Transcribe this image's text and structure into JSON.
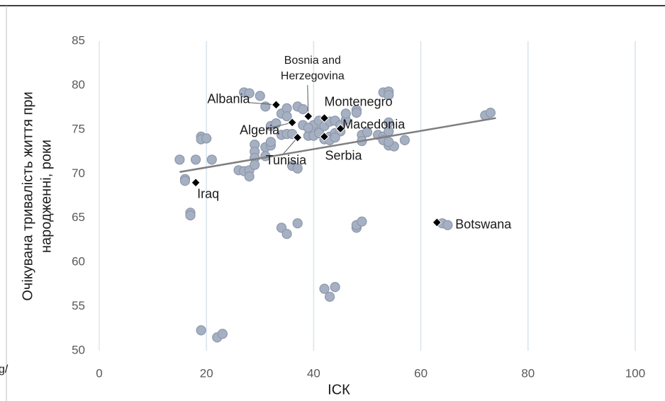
{
  "chart_data": {
    "type": "scatter",
    "x_label": "ІСК",
    "y_label": [
      "Очікувана тривалість життя при",
      "народженні, роки"
    ],
    "fragment": "g/",
    "xlim": [
      0,
      100
    ],
    "xticks": [
      0,
      20,
      40,
      60,
      80,
      100
    ],
    "ylim": [
      50,
      85
    ],
    "yticks": [
      50,
      55,
      60,
      65,
      70,
      75,
      80,
      85
    ],
    "grid": "vertical",
    "points": {
      "color": "#a6b0c3",
      "x": [
        15,
        16,
        16,
        18,
        19,
        19,
        20,
        21,
        17,
        17,
        19,
        22,
        23,
        27,
        28,
        30,
        31,
        26,
        27,
        28,
        28,
        29,
        29,
        29,
        29,
        31,
        32,
        32,
        32,
        33,
        31,
        34,
        35,
        37,
        36,
        37,
        34,
        35,
        34,
        35,
        35,
        36,
        37,
        38,
        38,
        39,
        40,
        40,
        41,
        41,
        42,
        43,
        43,
        44,
        44,
        45,
        45,
        46,
        39,
        41,
        42,
        43,
        44,
        42,
        44,
        43,
        48,
        48,
        49,
        48,
        48,
        46,
        53,
        54,
        54,
        49,
        50,
        49,
        52,
        53,
        54,
        54,
        54,
        55,
        57,
        53,
        54,
        72,
        73,
        64,
        65
      ],
      "y": [
        71.6,
        69.4,
        69.2,
        71.6,
        74.2,
        73.9,
        74,
        71.6,
        65.6,
        65.3,
        52.3,
        51.5,
        51.9,
        79.2,
        79.1,
        78.8,
        77.6,
        70.4,
        70.3,
        70.4,
        69.7,
        73.3,
        72.5,
        71.8,
        71,
        73,
        73.2,
        73.6,
        75.4,
        75.7,
        72,
        63.9,
        63.2,
        64.4,
        70.9,
        70.6,
        74.4,
        74.5,
        76.8,
        77.4,
        76.5,
        74.5,
        77.6,
        77.3,
        75.5,
        74.3,
        75.5,
        74.3,
        76,
        74.8,
        75.4,
        75.9,
        74.2,
        76,
        74.6,
        74.8,
        75.5,
        76.1,
        75.2,
        74.6,
        73.9,
        73.8,
        74.1,
        57,
        57.2,
        56.1,
        63.9,
        64.2,
        64.6,
        77.2,
        76.9,
        76.8,
        79.2,
        79.3,
        78.9,
        74.4,
        74.7,
        73.7,
        74.4,
        74.2,
        74.8,
        75.8,
        73.2,
        73.1,
        73.8,
        73.8,
        73.6,
        76.6,
        76.9,
        64.4,
        64.2
      ]
    },
    "highlighted": {
      "color": "#000000",
      "labels": [
        "Albania",
        "Algeria",
        "Bosnia and Herzegovina",
        "Montenegro",
        "Macedonia",
        "Serbia",
        "Tunisia",
        "Iraq",
        "Botswana"
      ],
      "x": [
        33,
        36,
        39,
        42,
        45,
        42,
        37,
        18,
        63
      ],
      "y": [
        77.8,
        75.8,
        76.5,
        76.3,
        75.1,
        74.2,
        74.1,
        69,
        64.5
      ]
    },
    "trendline": {
      "color": "#7f7f7f",
      "x": [
        15,
        74
      ],
      "y": [
        70.2,
        76.3
      ]
    }
  }
}
